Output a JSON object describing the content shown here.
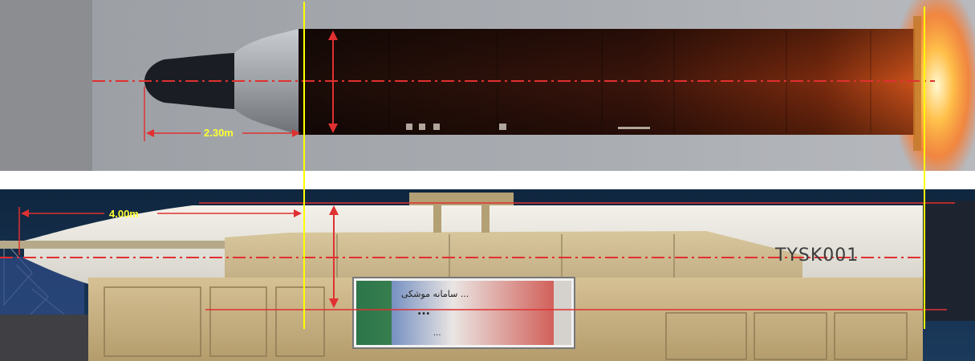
{
  "annotations": {
    "nose_length_label": "2.30m",
    "warhead_length_label": "4.00m",
    "marker_colors": {
      "reference_line": "#ffff00",
      "dimension_line": "#e03030",
      "label_text": "#ffff33"
    }
  },
  "vehicle": {
    "missile_marking": "TYSK001",
    "banner_lines": [
      "سامانه موشکی ...",
      "...",
      "..."
    ]
  }
}
